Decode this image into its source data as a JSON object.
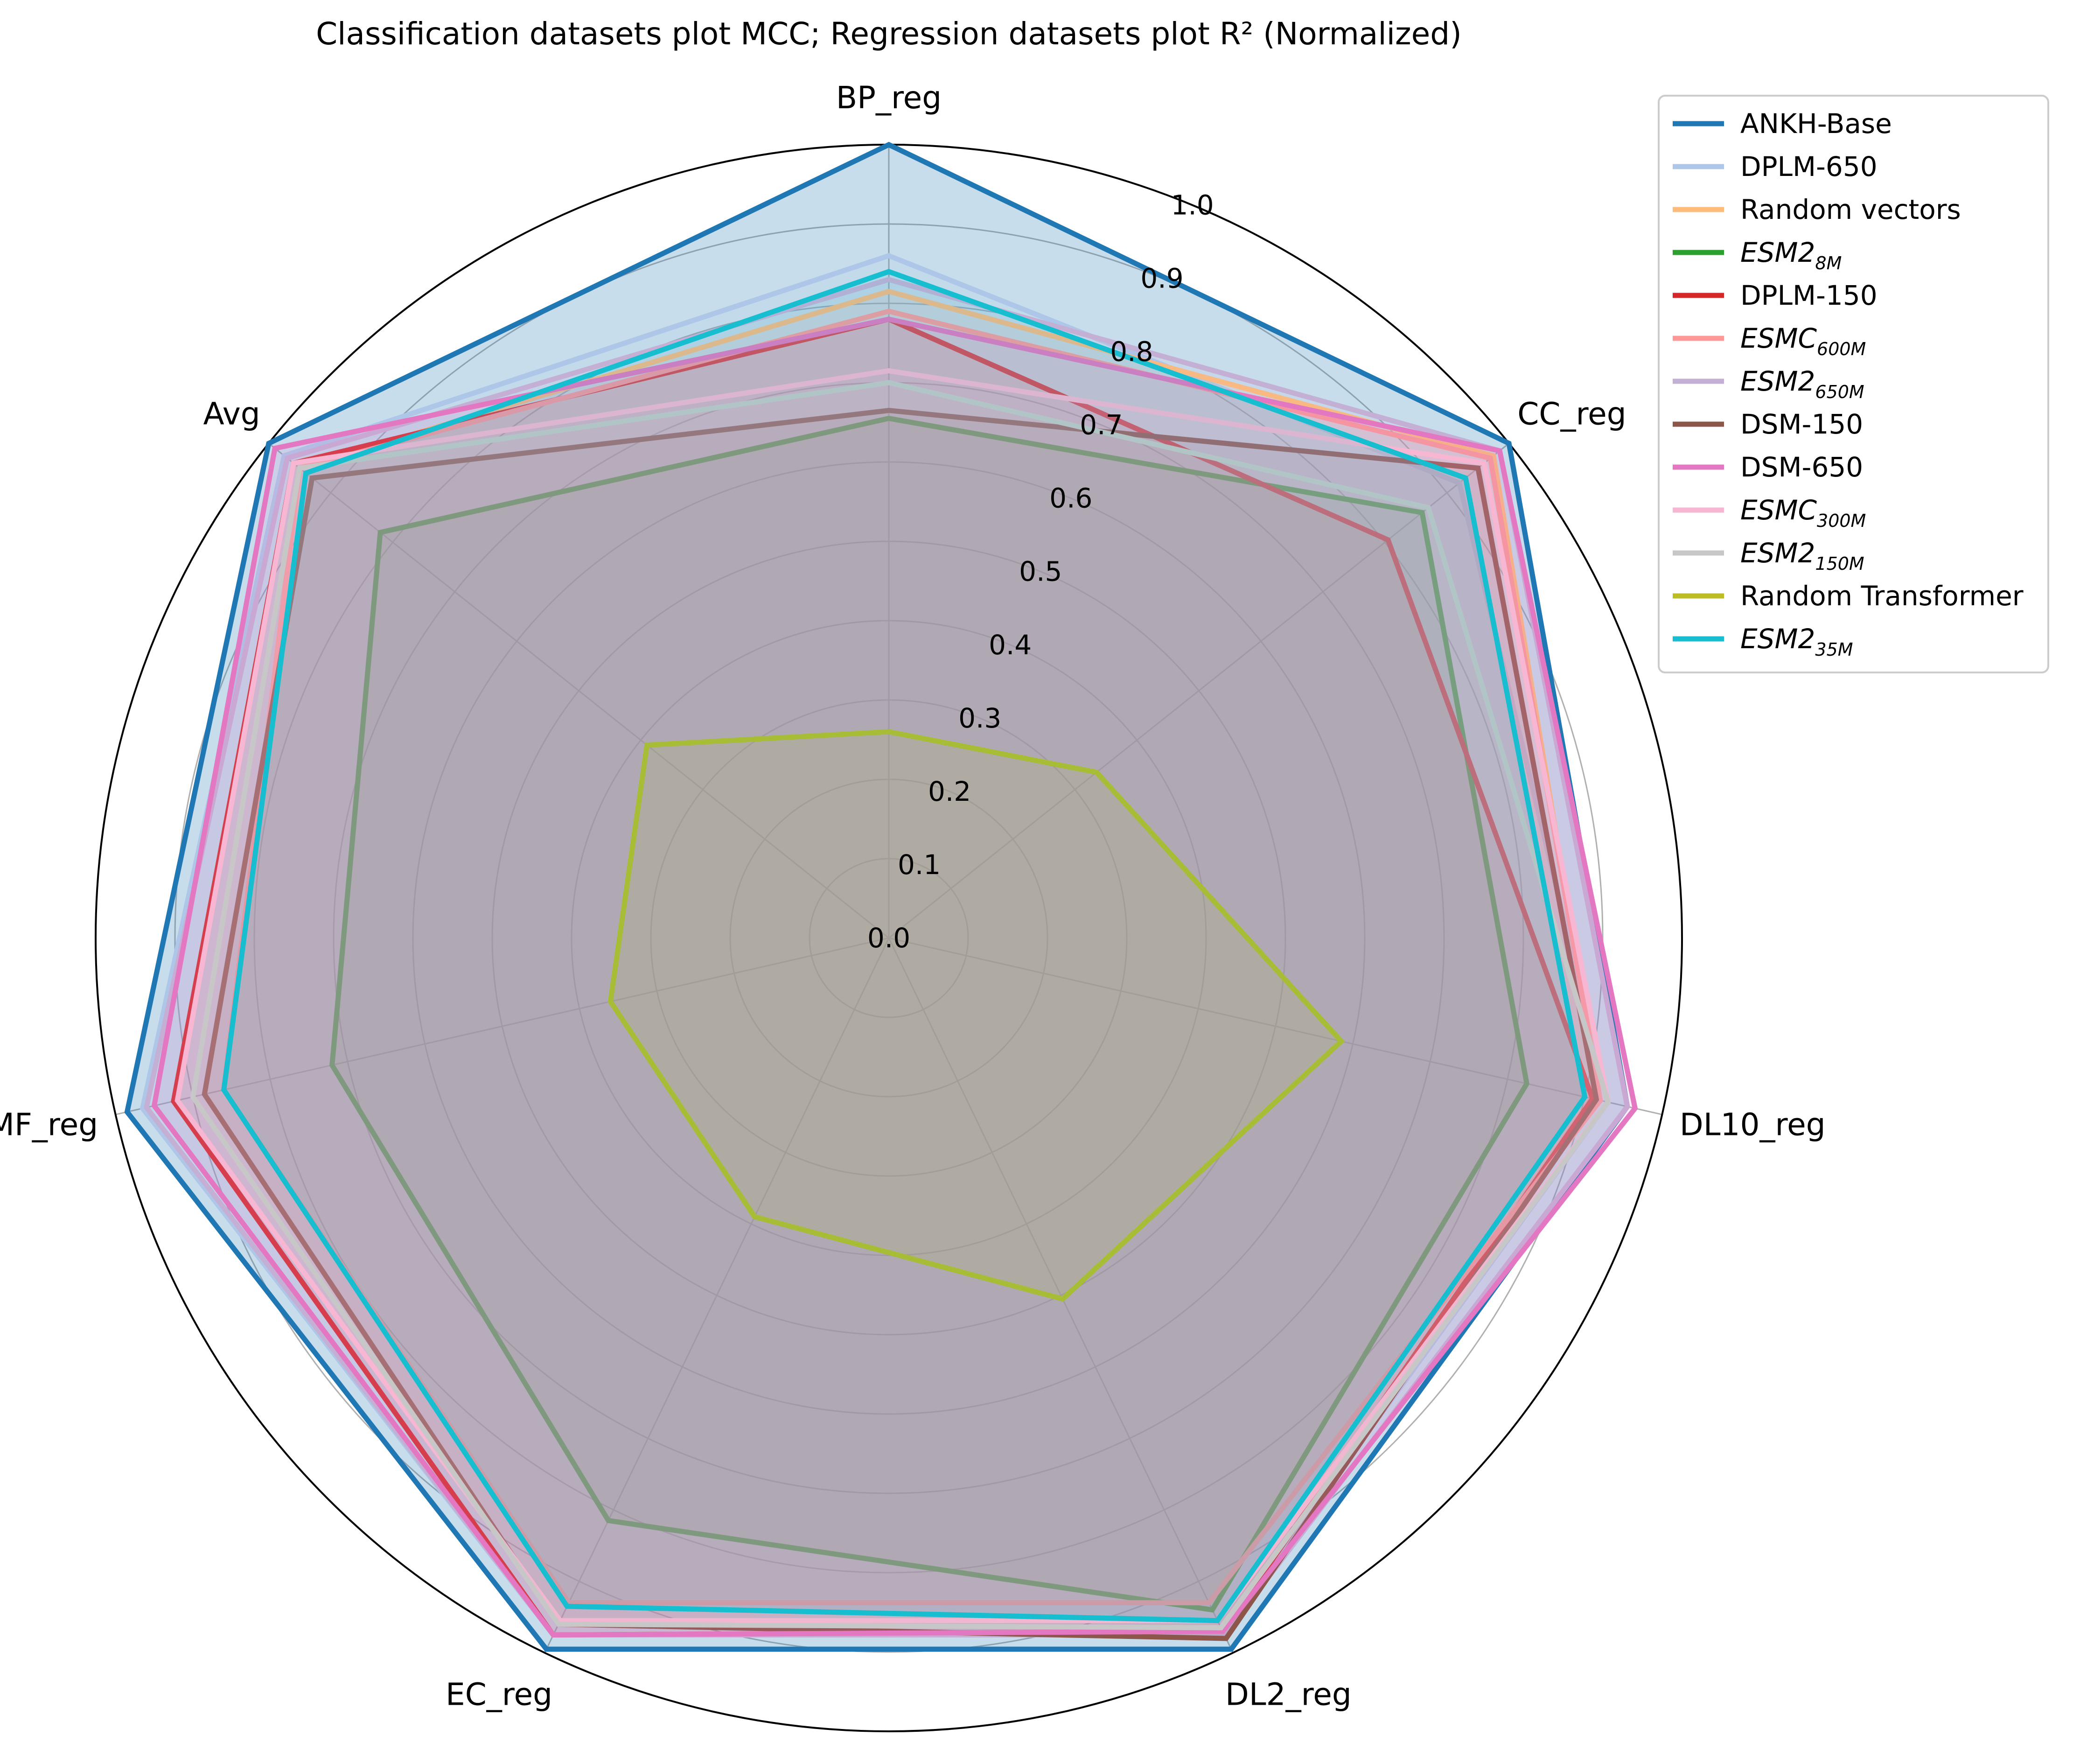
{
  "chart_data": {
    "type": "radar",
    "title": "Classification datasets plot MCC; Regression datasets plot R² (Normalized)",
    "axes": [
      "BP_reg",
      "CC_reg",
      "DL10_reg",
      "DL2_reg",
      "EC_reg",
      "MF_reg",
      "Avg"
    ],
    "rlim": [
      0,
      1.0
    ],
    "rticks": [
      "0.0",
      "0.1",
      "0.2",
      "0.3",
      "0.4",
      "0.5",
      "0.6",
      "0.7",
      "0.8",
      "0.9",
      "1.0"
    ],
    "grid": true,
    "legend_position": "outside-top-right",
    "series": [
      {
        "name": "ANKH-Base",
        "color": "#1f77b4",
        "values": [
          1.0,
          1.0,
          0.955,
          0.995,
          0.995,
          0.985,
          1.0
        ],
        "fill": true
      },
      {
        "name": "DPLM-650",
        "color": "#aec7e8",
        "values": [
          0.86,
          0.92,
          0.93,
          0.97,
          0.975,
          0.965,
          0.975
        ]
      },
      {
        "name": "Random vectors",
        "color": "#ffbb78",
        "values": [
          0.815,
          0.975,
          0.92,
          0.93,
          0.93,
          0.86,
          0.95
        ]
      },
      {
        "name": "ESM2",
        "sub": "8M",
        "italic": true,
        "color": "#2ca02c",
        "values": [
          0.655,
          0.86,
          0.825,
          0.94,
          0.815,
          0.72,
          0.82
        ]
      },
      {
        "name": "DPLM-150",
        "color": "#d62728",
        "values": [
          0.78,
          0.805,
          0.91,
          0.97,
          0.975,
          0.925,
          0.96
        ]
      },
      {
        "name": "ESMC",
        "sub": "600M",
        "italic": true,
        "color": "#ff9896",
        "values": [
          0.79,
          0.97,
          0.92,
          0.93,
          0.93,
          0.86,
          0.95
        ]
      },
      {
        "name": "ESM2",
        "sub": "650M",
        "italic": true,
        "color": "#c5b0d5",
        "values": [
          0.83,
          0.985,
          0.955,
          0.975,
          0.975,
          0.96,
          0.97
        ]
      },
      {
        "name": "DSM-150",
        "color": "#8c564b",
        "values": [
          0.665,
          0.95,
          0.915,
          0.98,
          0.96,
          0.885,
          0.93
        ]
      },
      {
        "name": "DSM-650",
        "color": "#e377c2",
        "values": [
          0.78,
          0.985,
          0.965,
          0.97,
          0.975,
          0.95,
          0.99
        ]
      },
      {
        "name": "ESMC",
        "sub": "300M",
        "italic": true,
        "color": "#f7b6d2",
        "values": [
          0.715,
          0.96,
          0.93,
          0.955,
          0.955,
          0.92,
          0.96
        ]
      },
      {
        "name": "ESM2",
        "sub": "150M",
        "italic": true,
        "color": "#c7c7c7",
        "values": [
          0.7,
          0.87,
          0.93,
          0.965,
          0.96,
          0.9,
          0.95
        ]
      },
      {
        "name": "Random Transformer",
        "color": "#bcbd22",
        "values": [
          0.26,
          0.335,
          0.585,
          0.505,
          0.39,
          0.36,
          0.39
        ]
      },
      {
        "name": "ESM2",
        "sub": "35M",
        "italic": true,
        "color": "#17becf",
        "values": [
          0.84,
          0.93,
          0.9,
          0.955,
          0.935,
          0.86,
          0.94
        ]
      }
    ]
  }
}
